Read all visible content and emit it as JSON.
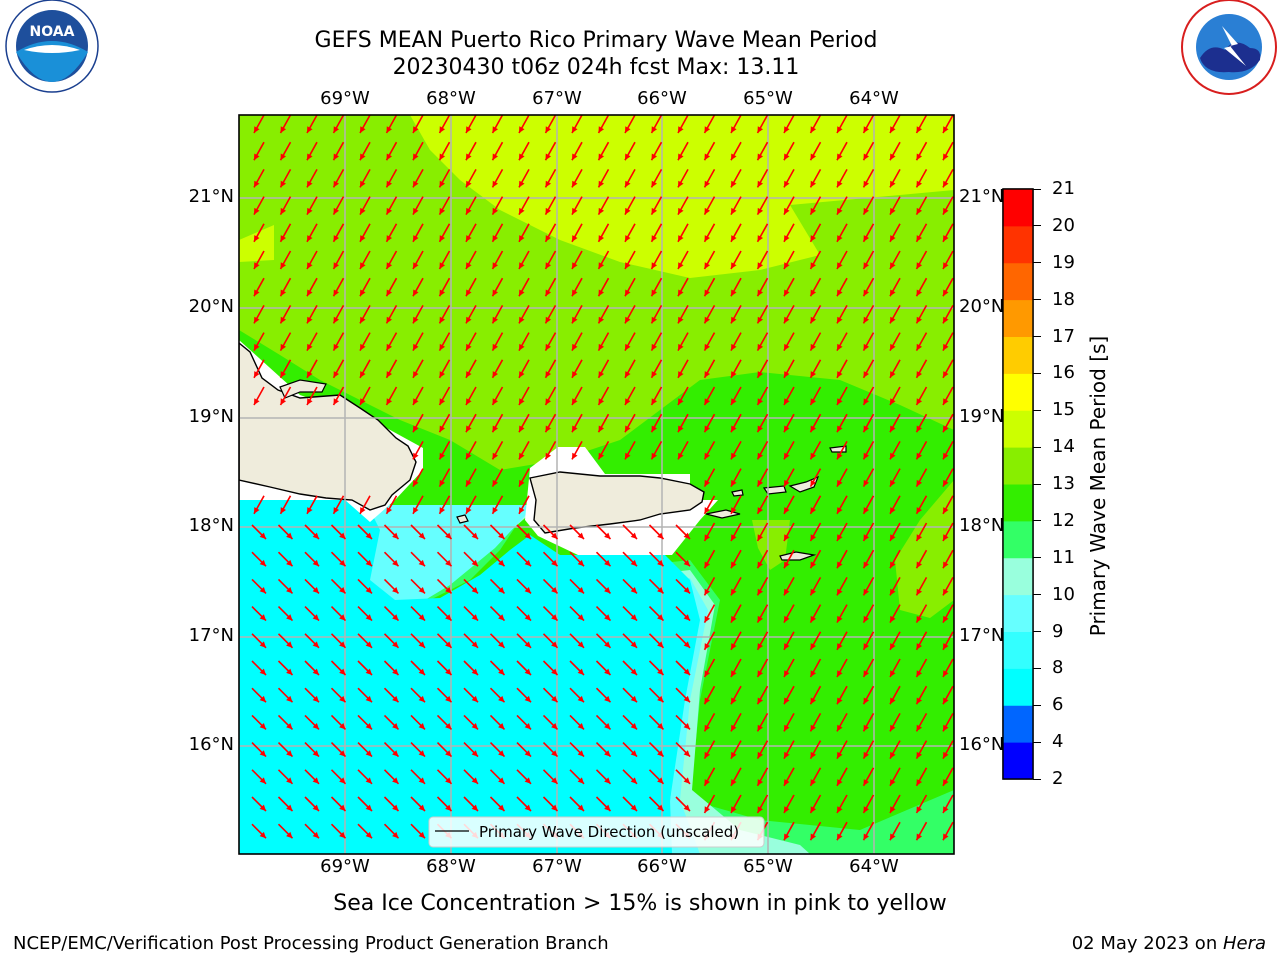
{
  "title": {
    "line1": "GEFS MEAN Puerto Rico Primary Wave Mean Period",
    "line2": "20230430 t06z 024h fcst   Max: 13.11"
  },
  "logos": {
    "left": {
      "text": "NOAA",
      "ring_text": "NATIONAL OCEANIC AND ATMOSPHERIC ADMINISTRATION · U.S. DEPARTMENT OF COMMERCE"
    },
    "right": {
      "ring_text": "NATIONAL WEATHER SERVICE"
    }
  },
  "map": {
    "lon_labels": [
      "69°W",
      "68°W",
      "67°W",
      "66°W",
      "65°W",
      "64°W"
    ],
    "lat_labels": [
      "21°N",
      "20°N",
      "19°N",
      "18°N",
      "17°N",
      "16°N"
    ],
    "arrow_color": "#ff0000",
    "legend_label": "Primary Wave Direction (unscaled)"
  },
  "colorbar": {
    "label": "Primary Wave Mean Period [s]",
    "ticks": [
      "2",
      "4",
      "6",
      "8",
      "9",
      "10",
      "11",
      "12",
      "13",
      "14",
      "15",
      "16",
      "17",
      "18",
      "19",
      "20",
      "21"
    ],
    "colors": [
      "#0000ff",
      "#0066ff",
      "#00ffff",
      "#33ffff",
      "#66ffff",
      "#99ffdd",
      "#33ff66",
      "#33ee00",
      "#88ee00",
      "#ccff00",
      "#ffff00",
      "#ffcc00",
      "#ff9900",
      "#ff6600",
      "#ff3300",
      "#ff0000"
    ]
  },
  "field_colors": {
    "p6_8": "#00ffff",
    "p8_9": "#66ffff",
    "p9_10": "#99ffdd",
    "p10_11": "#33ff66",
    "p11_12": "#33ee00",
    "p12_13": "#88ee00",
    "p13_14": "#ccff00",
    "land": "#efecdc"
  },
  "footer": {
    "note": "Sea Ice Concentration > 15% is shown in pink to yellow",
    "left": "NCEP/EMC/Verification Post Processing Product Generation Branch",
    "right_date": "02 May 2023 on ",
    "right_machine": "Hera"
  }
}
